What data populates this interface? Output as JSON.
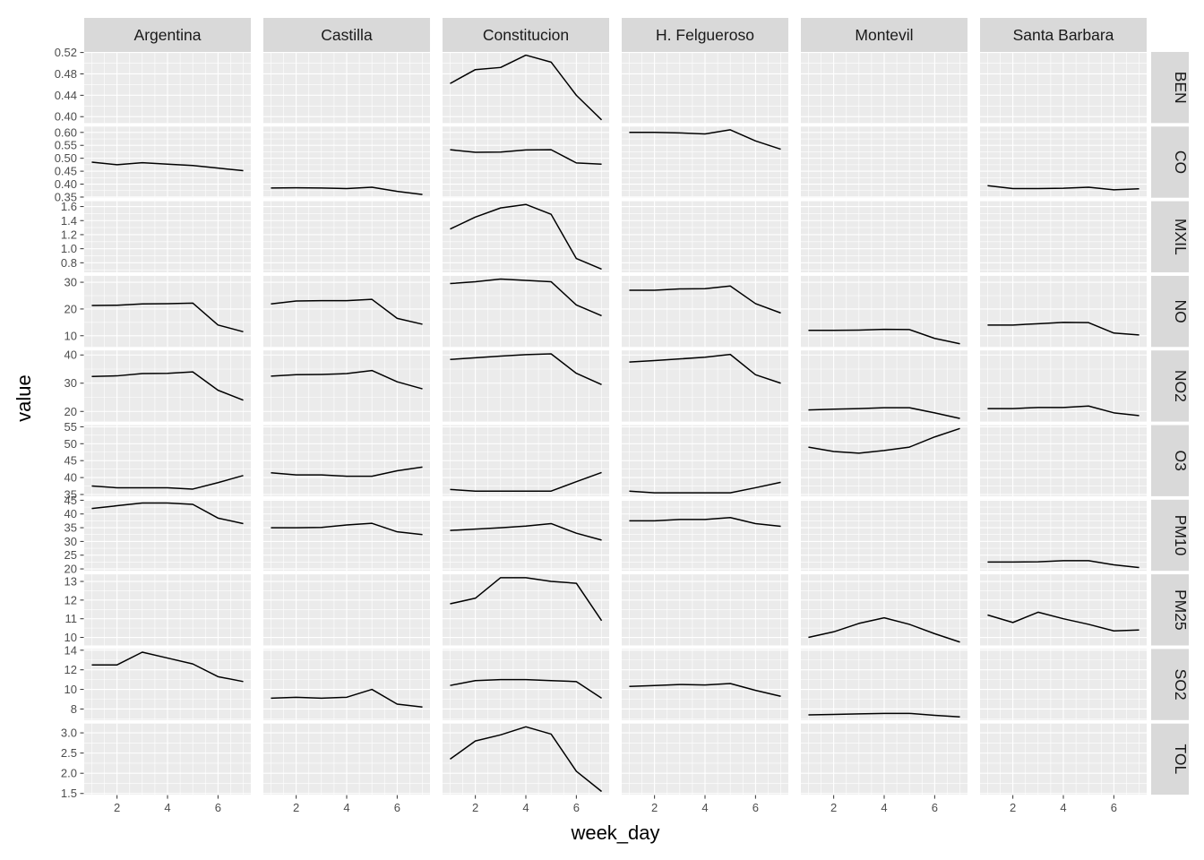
{
  "figure": {
    "background": "#FFFFFF",
    "colors": {
      "panel_bg": "#EBEBEB",
      "strip_bg": "#D9D9D9",
      "gridline": "#FFFFFF",
      "data_line": "#000000",
      "tick_mark": "#333333",
      "tick_text": "#4D4D4D",
      "strip_text": "#1A1A1A",
      "axis_title_text": "#000000"
    }
  },
  "chart_data": {
    "type": "line",
    "xlabel": "week_day",
    "ylabel": "value",
    "x": [
      1,
      2,
      3,
      4,
      5,
      6,
      7
    ],
    "xlim": [
      0.7,
      7.3
    ],
    "x_ticks": [
      2,
      4,
      6
    ],
    "x_tick_labels": [
      "2",
      "4",
      "6"
    ],
    "grid": "on",
    "legend_position": "none",
    "facet_columns": [
      "Argentina",
      "Castilla",
      "Constitucion",
      "H. Felgueroso",
      "Montevil",
      "Santa Barbara"
    ],
    "rows": [
      {
        "label": "BEN",
        "yticks": [
          0.4,
          0.44,
          0.48,
          0.52
        ],
        "ytick_labels": [
          "0.40",
          "0.44",
          "0.48",
          "0.52"
        ],
        "ylim": [
          0.388,
          0.521
        ],
        "series": [
          null,
          null,
          [
            0.462,
            0.488,
            0.492,
            0.515,
            0.502,
            0.44,
            0.394
          ],
          null,
          null,
          null
        ]
      },
      {
        "label": "CO",
        "yticks": [
          0.35,
          0.4,
          0.45,
          0.5,
          0.55,
          0.6
        ],
        "ytick_labels": [
          "0.35",
          "0.40",
          "0.45",
          "0.50",
          "0.55",
          "0.60"
        ],
        "ylim": [
          0.3475,
          0.6225
        ],
        "series": [
          [
            0.485,
            0.475,
            0.483,
            0.477,
            0.472,
            0.462,
            0.452
          ],
          [
            0.385,
            0.386,
            0.385,
            0.383,
            0.388,
            0.372,
            0.36
          ],
          [
            0.533,
            0.523,
            0.524,
            0.532,
            0.533,
            0.482,
            0.477
          ],
          [
            0.6,
            0.6,
            0.598,
            0.594,
            0.61,
            0.567,
            0.535
          ],
          null,
          [
            0.394,
            0.383,
            0.383,
            0.384,
            0.388,
            0.378,
            0.382
          ]
        ]
      },
      {
        "label": "MXIL",
        "yticks": [
          0.8,
          1.0,
          1.2,
          1.4,
          1.6
        ],
        "ytick_labels": [
          "0.8",
          "1.0",
          "1.2",
          "1.4",
          "1.6"
        ],
        "ylim": [
          0.664,
          1.676
        ],
        "series": [
          null,
          null,
          [
            1.28,
            1.45,
            1.58,
            1.63,
            1.49,
            0.86,
            0.71
          ],
          null,
          null,
          null
        ]
      },
      {
        "label": "NO",
        "yticks": [
          10,
          20,
          30
        ],
        "ytick_labels": [
          "10",
          "20",
          "30"
        ],
        "ylim": [
          5.8,
          32.4
        ],
        "series": [
          [
            21.3,
            21.4,
            21.9,
            22.0,
            22.2,
            14.0,
            11.5
          ],
          [
            21.9,
            23.0,
            23.1,
            23.1,
            23.6,
            16.5,
            14.3
          ],
          [
            29.5,
            30.2,
            31.2,
            30.7,
            30.2,
            21.5,
            17.5
          ],
          [
            27.0,
            27.0,
            27.5,
            27.6,
            28.6,
            22.0,
            18.5
          ],
          [
            12.0,
            12.0,
            12.1,
            12.4,
            12.3,
            9.0,
            7.0
          ],
          [
            14.0,
            14.0,
            14.5,
            15.0,
            14.9,
            11.0,
            10.3
          ]
        ]
      },
      {
        "label": "NO2",
        "yticks": [
          20,
          30,
          40
        ],
        "ytick_labels": [
          "20",
          "30",
          "40"
        ],
        "ylim": [
          16.4,
          41.6
        ],
        "series": [
          [
            32.4,
            32.6,
            33.4,
            33.5,
            34.0,
            27.5,
            24.0
          ],
          [
            32.5,
            33.0,
            33.1,
            33.4,
            34.5,
            30.5,
            28.0
          ],
          [
            38.4,
            39.0,
            39.6,
            40.1,
            40.4,
            33.5,
            29.5
          ],
          [
            37.5,
            38.0,
            38.6,
            39.2,
            40.2,
            33.0,
            30.0
          ],
          [
            20.5,
            20.8,
            21.0,
            21.3,
            21.3,
            19.5,
            17.5
          ],
          [
            21.0,
            21.0,
            21.4,
            21.4,
            21.9,
            19.5,
            18.5
          ]
        ]
      },
      {
        "label": "O3",
        "yticks": [
          35,
          40,
          45,
          50,
          55
        ],
        "ytick_labels": [
          "35",
          "40",
          "45",
          "50",
          "55"
        ],
        "ylim": [
          34.5,
          55.5
        ],
        "series": [
          [
            37.5,
            37.0,
            37.0,
            37.0,
            36.6,
            38.5,
            40.6
          ],
          [
            41.4,
            40.8,
            40.8,
            40.4,
            40.4,
            42.0,
            43.1
          ],
          [
            36.5,
            36.0,
            36.0,
            36.0,
            36.0,
            38.8,
            41.5
          ],
          [
            36.0,
            35.5,
            35.5,
            35.5,
            35.5,
            37.0,
            38.6
          ],
          [
            49.0,
            47.7,
            47.2,
            48.0,
            49.0,
            52.0,
            54.5
          ],
          null
        ]
      },
      {
        "label": "PM10",
        "yticks": [
          20,
          25,
          30,
          35,
          40,
          45
        ],
        "ytick_labels": [
          "20",
          "25",
          "30",
          "35",
          "40",
          "45"
        ],
        "ylim": [
          19.3,
          45.2
        ],
        "series": [
          [
            42.0,
            43.0,
            44.0,
            44.0,
            43.5,
            38.5,
            36.5
          ],
          [
            35.0,
            35.0,
            35.1,
            36.0,
            36.6,
            33.5,
            32.5
          ],
          [
            34.0,
            34.5,
            35.0,
            35.6,
            36.5,
            33.0,
            30.5
          ],
          [
            37.5,
            37.5,
            38.0,
            38.0,
            38.7,
            36.5,
            35.5
          ],
          null,
          [
            22.5,
            22.5,
            22.6,
            23.0,
            23.0,
            21.5,
            20.5
          ]
        ]
      },
      {
        "label": "PM25",
        "yticks": [
          10,
          11,
          12,
          13
        ],
        "ytick_labels": [
          "10",
          "11",
          "12",
          "13"
        ],
        "ylim": [
          9.57,
          13.38
        ],
        "series": [
          null,
          null,
          [
            11.8,
            12.1,
            13.2,
            13.2,
            13.0,
            12.9,
            10.9
          ],
          null,
          [
            10.0,
            10.3,
            10.75,
            11.05,
            10.7,
            10.2,
            9.75
          ],
          [
            11.2,
            10.8,
            11.35,
            11.0,
            10.7,
            10.35,
            10.4
          ]
        ]
      },
      {
        "label": "SO2",
        "yticks": [
          8,
          10,
          12,
          14
        ],
        "ytick_labels": [
          "8",
          "10",
          "12",
          "14"
        ],
        "ylim": [
          6.87,
          14.13
        ],
        "series": [
          [
            12.5,
            12.5,
            13.8,
            13.2,
            12.6,
            11.3,
            10.8
          ],
          [
            9.1,
            9.2,
            9.1,
            9.2,
            10.0,
            8.5,
            8.2
          ],
          [
            10.4,
            10.9,
            11.0,
            11.0,
            10.9,
            10.8,
            9.1
          ],
          [
            10.3,
            10.4,
            10.5,
            10.45,
            10.6,
            9.9,
            9.3
          ],
          [
            7.4,
            7.45,
            7.5,
            7.55,
            7.55,
            7.35,
            7.2
          ],
          null
        ]
      },
      {
        "label": "TOL",
        "yticks": [
          1.5,
          2.0,
          2.5,
          3.0
        ],
        "ytick_labels": [
          "1.5",
          "2.0",
          "2.5",
          "3.0"
        ],
        "ylim": [
          1.47,
          3.23
        ],
        "series": [
          null,
          null,
          [
            2.35,
            2.8,
            2.95,
            3.15,
            2.97,
            2.05,
            1.55
          ],
          null,
          null,
          null
        ]
      }
    ]
  }
}
